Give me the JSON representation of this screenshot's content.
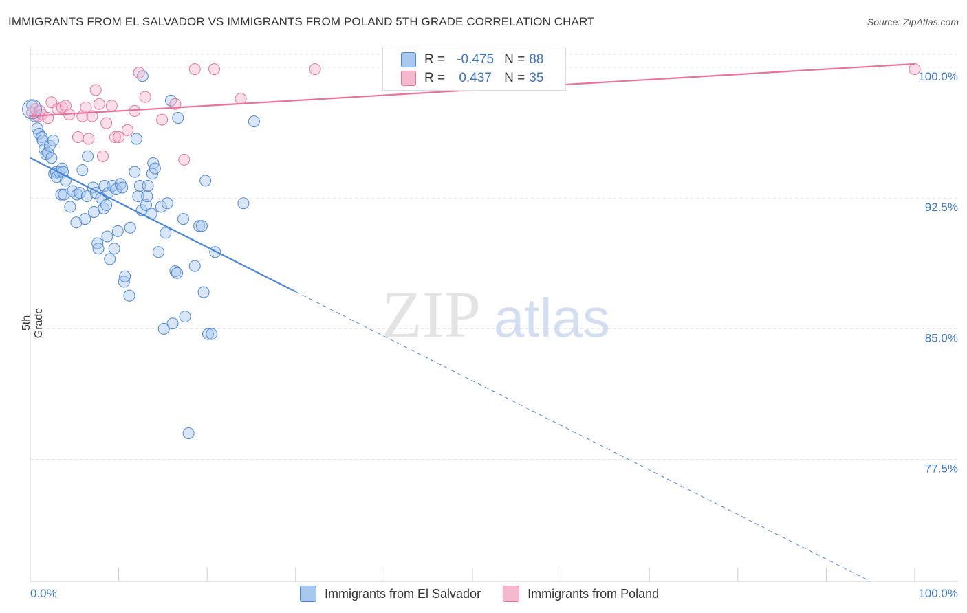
{
  "title": "IMMIGRANTS FROM EL SALVADOR VS IMMIGRANTS FROM POLAND 5TH GRADE CORRELATION CHART",
  "source": "Source: ZipAtlas.com",
  "watermark": {
    "zip": "ZIP",
    "atlas": "atlas"
  },
  "colors": {
    "blue": "#4a86d6",
    "blue_fill": "#a9c8ef",
    "pink": "#e8729a",
    "pink_fill": "#f5b8cc",
    "grid": "#e4e4e4",
    "axis_text": "#3a74c9"
  },
  "legend": {
    "rows": [
      {
        "r_label": "R =",
        "r_value": "-0.475",
        "n_label": "N =",
        "n_value": "88"
      },
      {
        "r_label": "R =",
        "r_value": "0.437",
        "n_label": "N =",
        "n_value": "35"
      }
    ]
  },
  "bottom_legend": [
    "Immigrants from El Salvador",
    "Immigrants from Poland"
  ],
  "chart_data": {
    "type": "scatter",
    "title": "IMMIGRANTS FROM EL SALVADOR VS IMMIGRANTS FROM POLAND 5TH GRADE CORRELATION CHART",
    "xlabel": "",
    "ylabel": "5th Grade",
    "xlim": [
      0,
      100
    ],
    "ylim": [
      70.5,
      101.5
    ],
    "x_tick_labels": [
      "0.0%",
      "100.0%"
    ],
    "y_ticks": [
      100.0,
      92.5,
      85.0,
      77.5
    ],
    "y_tick_labels": [
      "100.0%",
      "92.5%",
      "85.0%",
      "77.5%"
    ],
    "grid": true,
    "legend_position": "top-center",
    "series": [
      {
        "name": "Immigrants from El Salvador",
        "color": "#4a86d6",
        "trend": {
          "x": [
            0,
            30,
            95
          ],
          "y": [
            94.8,
            86.9,
            70.5
          ],
          "solid_until": 30
        },
        "points": [
          [
            0.2,
            97.8
          ],
          [
            0.5,
            97.2
          ],
          [
            0.8,
            96.5
          ],
          [
            1.0,
            96.2
          ],
          [
            1.3,
            96.0
          ],
          [
            1.4,
            95.8
          ],
          [
            1.6,
            95.3
          ],
          [
            1.8,
            95.0
          ],
          [
            2.0,
            95.1
          ],
          [
            2.2,
            95.5
          ],
          [
            2.4,
            94.8
          ],
          [
            2.6,
            95.8
          ],
          [
            2.7,
            93.9
          ],
          [
            2.9,
            94.0
          ],
          [
            3.0,
            93.7
          ],
          [
            3.3,
            94.0
          ],
          [
            3.5,
            92.7
          ],
          [
            3.6,
            94.2
          ],
          [
            3.7,
            94.0
          ],
          [
            3.8,
            92.7
          ],
          [
            4.0,
            93.5
          ],
          [
            4.5,
            92.0
          ],
          [
            4.8,
            92.9
          ],
          [
            5.2,
            91.1
          ],
          [
            5.3,
            92.7
          ],
          [
            5.6,
            92.8
          ],
          [
            5.9,
            94.1
          ],
          [
            6.2,
            91.3
          ],
          [
            6.4,
            92.6
          ],
          [
            6.5,
            94.9
          ],
          [
            7.1,
            93.1
          ],
          [
            7.2,
            91.7
          ],
          [
            7.4,
            92.8
          ],
          [
            7.6,
            89.9
          ],
          [
            7.7,
            89.6
          ],
          [
            8.0,
            92.5
          ],
          [
            8.3,
            91.9
          ],
          [
            8.4,
            93.2
          ],
          [
            8.6,
            92.1
          ],
          [
            8.7,
            90.3
          ],
          [
            8.8,
            92.8
          ],
          [
            9.0,
            89.0
          ],
          [
            9.3,
            93.2
          ],
          [
            9.5,
            89.6
          ],
          [
            9.7,
            93.0
          ],
          [
            9.9,
            90.6
          ],
          [
            10.2,
            93.3
          ],
          [
            10.4,
            93.1
          ],
          [
            10.6,
            87.7
          ],
          [
            10.7,
            88.0
          ],
          [
            11.2,
            86.9
          ],
          [
            11.3,
            90.8
          ],
          [
            11.8,
            94.0
          ],
          [
            12.0,
            95.9
          ],
          [
            12.2,
            92.6
          ],
          [
            12.4,
            93.2
          ],
          [
            12.6,
            91.8
          ],
          [
            12.7,
            99.5
          ],
          [
            13.1,
            92.1
          ],
          [
            13.2,
            92.6
          ],
          [
            13.3,
            93.2
          ],
          [
            13.7,
            91.6
          ],
          [
            13.8,
            93.9
          ],
          [
            13.9,
            94.5
          ],
          [
            14.1,
            94.2
          ],
          [
            14.5,
            89.4
          ],
          [
            14.8,
            92.0
          ],
          [
            15.1,
            85.0
          ],
          [
            15.3,
            90.5
          ],
          [
            15.5,
            92.2
          ],
          [
            15.9,
            98.1
          ],
          [
            16.1,
            85.3
          ],
          [
            16.4,
            88.3
          ],
          [
            16.6,
            88.2
          ],
          [
            16.7,
            97.1
          ],
          [
            17.3,
            91.3
          ],
          [
            17.5,
            85.7
          ],
          [
            17.9,
            79.0
          ],
          [
            18.6,
            88.6
          ],
          [
            19.1,
            90.9
          ],
          [
            19.4,
            90.9
          ],
          [
            19.6,
            87.1
          ],
          [
            19.8,
            93.5
          ],
          [
            20.1,
            84.7
          ],
          [
            20.5,
            84.7
          ],
          [
            20.9,
            89.4
          ],
          [
            24.1,
            92.2
          ],
          [
            25.3,
            96.9
          ]
        ]
      },
      {
        "name": "Immigrants from Poland",
        "color": "#e8729a",
        "trend": {
          "x": [
            0,
            100
          ],
          "y": [
            97.2,
            100.2
          ],
          "solid_until": 100
        },
        "points": [
          [
            0.2,
            97.4
          ],
          [
            0.6,
            97.6
          ],
          [
            0.9,
            97.2
          ],
          [
            1.1,
            97.5
          ],
          [
            1.3,
            97.3
          ],
          [
            2.0,
            97.1
          ],
          [
            2.4,
            98.0
          ],
          [
            3.1,
            97.6
          ],
          [
            3.6,
            97.7
          ],
          [
            4.0,
            97.8
          ],
          [
            4.4,
            97.3
          ],
          [
            5.4,
            96.0
          ],
          [
            5.9,
            97.2
          ],
          [
            6.3,
            97.7
          ],
          [
            6.6,
            95.9
          ],
          [
            7.0,
            97.2
          ],
          [
            7.4,
            98.7
          ],
          [
            7.8,
            97.9
          ],
          [
            8.2,
            94.9
          ],
          [
            8.6,
            96.8
          ],
          [
            9.2,
            97.8
          ],
          [
            9.6,
            96.0
          ],
          [
            10.0,
            96.0
          ],
          [
            11.0,
            96.4
          ],
          [
            11.8,
            97.5
          ],
          [
            12.3,
            99.7
          ],
          [
            13.0,
            98.3
          ],
          [
            14.9,
            97.0
          ],
          [
            16.4,
            97.9
          ],
          [
            17.4,
            94.7
          ],
          [
            18.6,
            99.9
          ],
          [
            20.8,
            99.9
          ],
          [
            23.8,
            98.2
          ],
          [
            32.2,
            99.9
          ],
          [
            100.0,
            99.9
          ]
        ]
      }
    ]
  }
}
